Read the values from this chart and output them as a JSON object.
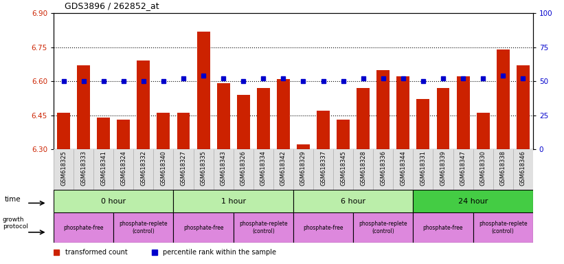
{
  "title": "GDS3896 / 262852_at",
  "samples": [
    "GSM618325",
    "GSM618333",
    "GSM618341",
    "GSM618324",
    "GSM618332",
    "GSM618340",
    "GSM618327",
    "GSM618335",
    "GSM618343",
    "GSM618326",
    "GSM618334",
    "GSM618342",
    "GSM618329",
    "GSM618337",
    "GSM618345",
    "GSM618328",
    "GSM618336",
    "GSM618344",
    "GSM618331",
    "GSM618339",
    "GSM618347",
    "GSM618330",
    "GSM618338",
    "GSM618346"
  ],
  "transformed_count": [
    6.46,
    6.67,
    6.44,
    6.43,
    6.69,
    6.46,
    6.46,
    6.82,
    6.59,
    6.54,
    6.57,
    6.61,
    6.32,
    6.47,
    6.43,
    6.57,
    6.65,
    6.62,
    6.52,
    6.57,
    6.62,
    6.46,
    6.74,
    6.67
  ],
  "percentile_rank": [
    50,
    50,
    50,
    50,
    50,
    50,
    52,
    54,
    52,
    50,
    52,
    52,
    50,
    50,
    50,
    52,
    52,
    52,
    50,
    52,
    52,
    52,
    54,
    52
  ],
  "ylim_left": [
    6.3,
    6.9
  ],
  "ylim_right": [
    0,
    100
  ],
  "yticks_left": [
    6.3,
    6.45,
    6.6,
    6.75,
    6.9
  ],
  "yticks_right": [
    0,
    25,
    50,
    75,
    100
  ],
  "bar_color": "#cc2200",
  "dot_color": "#0000cc",
  "time_groups": [
    {
      "label": "0 hour",
      "start": 0,
      "end": 6,
      "color": "#bbeeaa"
    },
    {
      "label": "1 hour",
      "start": 6,
      "end": 12,
      "color": "#bbeeaa"
    },
    {
      "label": "6 hour",
      "start": 12,
      "end": 18,
      "color": "#bbeeaa"
    },
    {
      "label": "24 hour",
      "start": 18,
      "end": 24,
      "color": "#44cc44"
    }
  ],
  "protocol_groups": [
    {
      "label": "phosphate-free",
      "start": 0,
      "end": 3
    },
    {
      "label": "phosphate-replete\n(control)",
      "start": 3,
      "end": 6
    },
    {
      "label": "phosphate-free",
      "start": 6,
      "end": 9
    },
    {
      "label": "phosphate-replete\n(control)",
      "start": 9,
      "end": 12
    },
    {
      "label": "phosphate-free",
      "start": 12,
      "end": 15
    },
    {
      "label": "phosphate-replete\n(control)",
      "start": 15,
      "end": 18
    },
    {
      "label": "phosphate-free",
      "start": 18,
      "end": 21
    },
    {
      "label": "phosphate-replete\n(control)",
      "start": 21,
      "end": 24
    }
  ],
  "protocol_color": "#dd88dd",
  "dotted_lines": [
    6.45,
    6.6,
    6.75
  ]
}
